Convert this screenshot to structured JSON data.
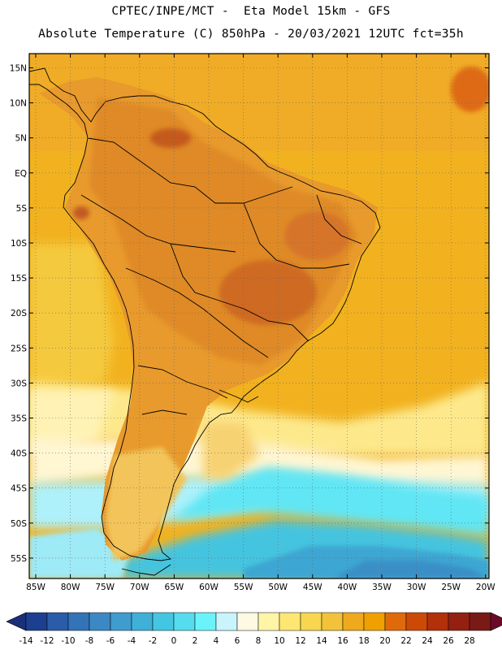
{
  "header": {
    "title_line1": "CPTEC/INPE/MCT -  Eta Model 15km - GFS",
    "title_line2": "Absolute Temperature (C) 850hPa - 20/03/2021 12UTC fct=35h"
  },
  "map": {
    "lat_labels": [
      "15N",
      "10N",
      "5N",
      "EQ",
      "5S",
      "10S",
      "15S",
      "20S",
      "25S",
      "30S",
      "35S",
      "40S",
      "45S",
      "50S",
      "55S"
    ],
    "lon_labels": [
      "85W",
      "80W",
      "75W",
      "70W",
      "65W",
      "60W",
      "55W",
      "50W",
      "45W",
      "40W",
      "35W",
      "30W",
      "25W",
      "20W"
    ]
  },
  "colorbar": {
    "labels": [
      "-14",
      "-12",
      "-10",
      "-8",
      "-6",
      "-4",
      "-2",
      "0",
      "2",
      "4",
      "6",
      "8",
      "10",
      "12",
      "14",
      "16",
      "18",
      "20",
      "22",
      "24",
      "26",
      "28"
    ],
    "colors": [
      "#1c3f8f",
      "#2a5ca8",
      "#3373b8",
      "#3b88c4",
      "#3f9ccf",
      "#3fb0d8",
      "#44c6e2",
      "#55dcee",
      "#6bf3fa",
      "#c9f4fc",
      "#fef9e3",
      "#fff5a6",
      "#fde772",
      "#f8d64f",
      "#f2c23a",
      "#eea91c",
      "#f0a000",
      "#e06a0a",
      "#cc4a06",
      "#b2300a",
      "#942012",
      "#7a1a16"
    ],
    "arrow_low_color": "#1b2f7a",
    "arrow_high_color": "#6b0a28"
  }
}
